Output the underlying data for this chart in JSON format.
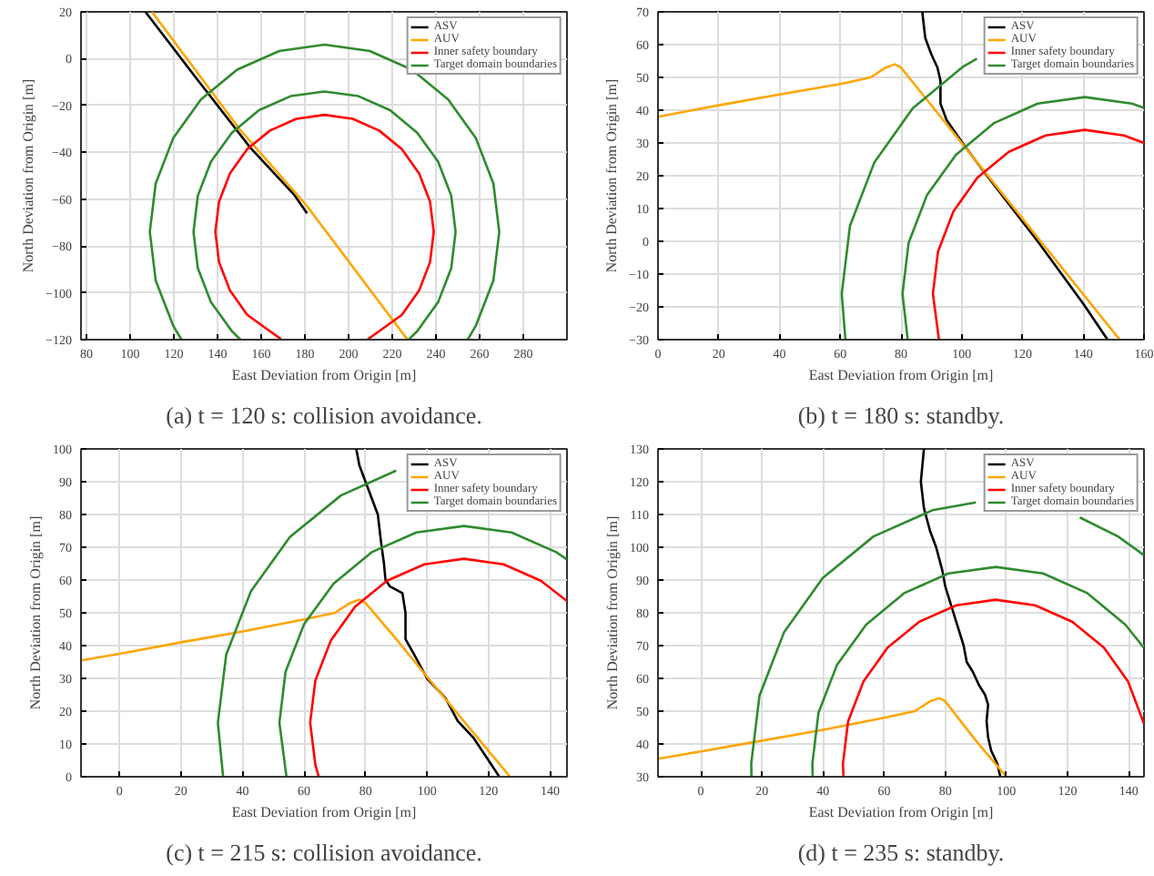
{
  "chart_data": [
    {
      "type": "line",
      "title": "(a) t = 120 s: collision avoidance.",
      "xlabel": "East Deviation from Origin [m]",
      "ylabel": "North Deviation from Origin [m]",
      "xlim": [
        77.5,
        300
      ],
      "ylim": [
        -120,
        20
      ],
      "xticks": [
        80,
        100,
        120,
        140,
        160,
        180,
        200,
        220,
        240,
        260,
        280
      ],
      "yticks": [
        -120,
        -100,
        -80,
        -60,
        -40,
        -20,
        0,
        20
      ],
      "grid": true,
      "legend": "top right",
      "series": [
        {
          "name": "ASV",
          "color": "#000000",
          "x": [
            107,
            130,
            155,
            175,
            181
          ],
          "values": [
            20,
            -8,
            -38,
            -58,
            -66
          ]
        },
        {
          "name": "AUV",
          "color": "#ffa500",
          "x": [
            110,
            150,
            181,
            227
          ],
          "values": [
            20,
            -30,
            -63,
            -120
          ]
        },
        {
          "name": "Inner safety boundary",
          "color": "#ff0000",
          "x": [
            169.4,
            153.6,
            145.7,
            140.7,
            139,
            140.7,
            145.7,
            153.6,
            164,
            176.1,
            189,
            201.9,
            214,
            224.4,
            232.3,
            237.3,
            239,
            237.3,
            232.3,
            224.4,
            208.6
          ],
          "values": [
            -120,
            -109.4,
            -99,
            -86.9,
            -74,
            -61.1,
            -49,
            -38.6,
            -30.7,
            -25.7,
            -24,
            -25.7,
            -30.7,
            -38.6,
            -49,
            -61.1,
            -74,
            -86.9,
            -99,
            -109.4,
            -120
          ]
        },
        {
          "name": "Target domain boundaries",
          "color": "#2e8b2e",
          "x": [
            150.5,
            146.6,
            137,
            131,
            129,
            131,
            137,
            146.6,
            159,
            173.5,
            189,
            204.5,
            219,
            231.4,
            241,
            247,
            249,
            247,
            241,
            231.4,
            227.5,
            null,
            123.5,
            119.7,
            111.7,
            109,
            111.7,
            119.7,
            132.4,
            149,
            168.3,
            189,
            209.7,
            229,
            245.6,
            258.3,
            266.3,
            269,
            266.3,
            258.3,
            254.5
          ],
          "values": [
            -120,
            -116.4,
            -104,
            -89.5,
            -74,
            -58.5,
            -44,
            -31.6,
            -22,
            -16,
            -14,
            -16,
            -22,
            -31.6,
            -44,
            -58.5,
            -74,
            -89.5,
            -104,
            -116.4,
            -120,
            null,
            -120,
            -114,
            -94.7,
            -74,
            -53.3,
            -34,
            -17.4,
            -4.7,
            3.3,
            6,
            3.3,
            -4.7,
            -17.4,
            -34,
            -53.3,
            -74,
            -94.7,
            -114,
            -120
          ]
        }
      ]
    },
    {
      "type": "line",
      "title": "(b) t = 180 s: standby.",
      "xlabel": "East Deviation from Origin [m]",
      "ylabel": "North Deviation from Origin [m]",
      "xlim": [
        0,
        160
      ],
      "ylim": [
        -30,
        70
      ],
      "xticks": [
        0,
        20,
        40,
        60,
        80,
        100,
        120,
        140,
        160
      ],
      "yticks": [
        -30,
        -20,
        -10,
        0,
        10,
        20,
        30,
        40,
        50,
        60,
        70
      ],
      "grid": true,
      "legend": "top right",
      "series": [
        {
          "name": "ASV",
          "color": "#000000",
          "x": [
            87,
            88,
            90,
            92,
            93,
            93,
            95,
            98,
            101,
            110,
            125,
            140,
            148
          ],
          "values": [
            70,
            62,
            57,
            53,
            49,
            42,
            37,
            33,
            29,
            18,
            0,
            -19,
            -30
          ]
        },
        {
          "name": "AUV",
          "color": "#ffa500",
          "x": [
            0,
            20,
            40,
            60,
            70,
            75,
            78,
            80,
            103,
            126,
            152
          ],
          "values": [
            38,
            41.5,
            44.8,
            48,
            50,
            53,
            54,
            53,
            26.5,
            0,
            -30
          ]
        },
        {
          "name": "Inner safety boundary",
          "color": "#ff0000",
          "x": [
            92.5,
            90.5,
            92.2,
            97.2,
            105.1,
            115.5,
            127.6,
            140.5,
            153.4,
            160
          ],
          "values": [
            -30,
            -16,
            -3.1,
            9,
            19.4,
            27.3,
            32.3,
            34,
            32.3,
            30
          ]
        },
        {
          "name": "Target domain boundaries",
          "color": "#2e8b2e",
          "x": [
            82.2,
            80.5,
            82.5,
            88.5,
            98.1,
            110.5,
            125,
            140.5,
            156,
            160,
            null,
            61.7,
            60.5,
            63.2,
            71.2,
            83.9,
            100.5,
            105
          ],
          "values": [
            -30,
            -16,
            -0.5,
            14,
            26.4,
            36,
            42,
            44,
            42,
            40.7,
            null,
            -30,
            -16,
            4.7,
            24,
            40.6,
            53.3,
            55.7
          ]
        }
      ]
    },
    {
      "type": "line",
      "title": "(c) t = 215 s: collision avoidance.",
      "xlabel": "East Deviation from Origin [m]",
      "ylabel": "North Deviation from Origin [m]",
      "xlim": [
        -12.5,
        145.5
      ],
      "ylim": [
        0,
        100
      ],
      "xticks": [
        0,
        20,
        40,
        60,
        80,
        100,
        120,
        140
      ],
      "yticks": [
        0,
        10,
        20,
        30,
        40,
        50,
        60,
        70,
        80,
        90,
        100
      ],
      "grid": true,
      "legend": "top right",
      "series": [
        {
          "name": "ASV",
          "color": "#000000",
          "x": [
            77,
            78,
            80,
            82,
            84,
            85,
            86,
            86.5,
            88,
            92,
            93,
            93,
            96,
            100,
            106,
            110,
            115,
            120,
            123.5
          ],
          "values": [
            100,
            95,
            90,
            85,
            80,
            72,
            65,
            60,
            58,
            56,
            50,
            42,
            37,
            30,
            24,
            17,
            12,
            5,
            0
          ]
        },
        {
          "name": "AUV",
          "color": "#ffa500",
          "x": [
            -12.5,
            0,
            20,
            40,
            60,
            70,
            75,
            78,
            80,
            90,
            100,
            115,
            127
          ],
          "values": [
            35.5,
            37.5,
            41,
            44.3,
            48,
            50,
            53,
            54,
            53,
            42,
            30.5,
            13.5,
            0
          ]
        },
        {
          "name": "Inner safety boundary",
          "color": "#ff0000",
          "x": [
            64.8,
            63.7,
            62,
            63.7,
            68.7,
            76.6,
            87,
            99.1,
            112,
            124.9,
            137,
            145.5
          ],
          "values": [
            0,
            3.6,
            16.5,
            29.4,
            41.5,
            51.9,
            59.8,
            64.8,
            66.5,
            64.8,
            59.8,
            53.6
          ]
        },
        {
          "name": "Target domain boundaries",
          "color": "#2e8b2e",
          "x": [
            54.3,
            52,
            54,
            60,
            69.6,
            82,
            96.5,
            112,
            127.5,
            142,
            145.5,
            null,
            33.7,
            32,
            34.7,
            42.7,
            55.4,
            72,
            90
          ],
          "values": [
            0,
            16.5,
            32,
            46.5,
            58.9,
            68.5,
            74.5,
            76.5,
            74.5,
            68.5,
            66.3,
            null,
            0,
            16.5,
            37.2,
            56.5,
            73.1,
            85.8,
            93.4
          ]
        }
      ]
    },
    {
      "type": "line",
      "title": "(d) t = 235 s: standby.",
      "xlabel": "East Deviation from Origin [m]",
      "ylabel": "North Deviation from Origin [m]",
      "xlim": [
        -14,
        145
      ],
      "ylim": [
        30,
        130
      ],
      "xticks": [
        0,
        20,
        40,
        60,
        80,
        100,
        120,
        140
      ],
      "yticks": [
        30,
        40,
        50,
        60,
        70,
        80,
        90,
        100,
        110,
        120,
        130
      ],
      "grid": true,
      "legend": "top right",
      "series": [
        {
          "name": "ASV",
          "color": "#000000",
          "x": [
            73,
            72,
            73,
            75,
            77,
            79,
            80,
            82,
            84,
            86,
            87,
            89,
            91,
            93,
            94,
            93.5,
            94,
            95,
            97,
            98
          ],
          "values": [
            130,
            120,
            112,
            105,
            100,
            93,
            88,
            82,
            76,
            70,
            65,
            62,
            58,
            55,
            52,
            47,
            42,
            38,
            34,
            30
          ]
        },
        {
          "name": "AUV",
          "color": "#ffa500",
          "x": [
            -14,
            0,
            20,
            40,
            60,
            70,
            75,
            78,
            80,
            90,
            100
          ],
          "values": [
            35.5,
            37.7,
            41,
            44.3,
            48,
            50,
            53,
            54,
            53,
            41,
            30
          ]
        },
        {
          "name": "Inner safety boundary",
          "color": "#ff0000",
          "x": [
            46.7,
            46.5,
            48.2,
            53.2,
            61.1,
            71.5,
            83.6,
            96.5,
            109.4,
            121.5,
            131.9,
            139.8,
            145
          ],
          "values": [
            30,
            34,
            46.9,
            59,
            69.4,
            77.3,
            82.3,
            84,
            82.3,
            77.3,
            69.4,
            59,
            46.2
          ]
        },
        {
          "name": "Target domain boundaries",
          "color": "#2e8b2e",
          "x": [
            36.6,
            36.5,
            38.5,
            44.5,
            54.1,
            66.5,
            81,
            96.5,
            112,
            126.5,
            138.9,
            145,
            null,
            16.6,
            16.5,
            19.2,
            27.2,
            39.9,
            56.5,
            75.8,
            90,
            null,
            124,
            136.5,
            145
          ],
          "values": [
            30,
            34,
            49.5,
            64,
            76.4,
            86,
            92,
            94,
            92,
            86,
            76.4,
            69.3,
            null,
            30,
            34,
            54.7,
            74,
            90.6,
            103.3,
            111.3,
            113.7,
            null,
            109.1,
            103.3,
            97.6
          ]
        }
      ]
    }
  ]
}
